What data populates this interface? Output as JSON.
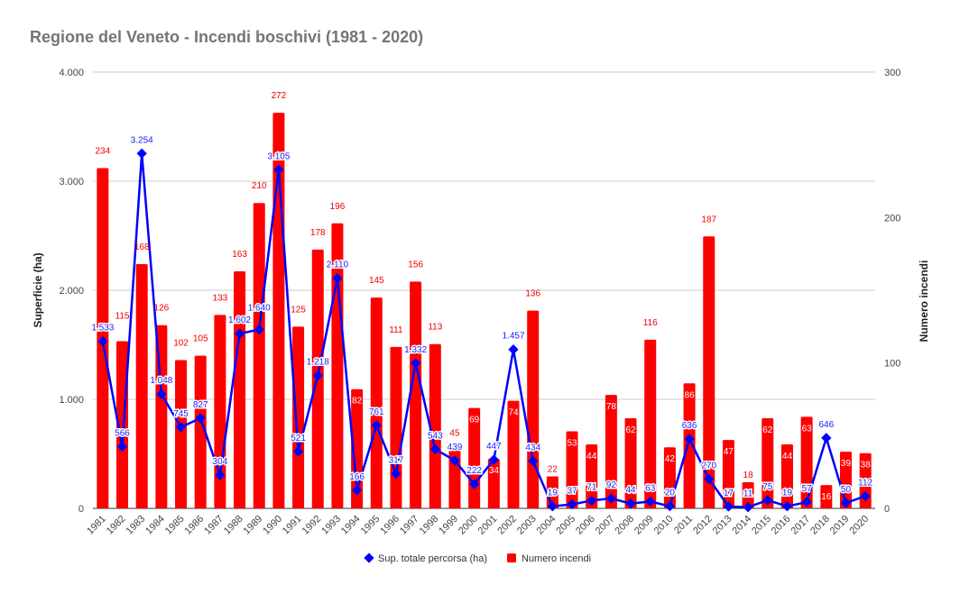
{
  "chart_data": {
    "type": "bar+line",
    "title": "Regione del Veneto - Incendi boschivi (1981 - 2020)",
    "categories": [
      "1981",
      "1982",
      "1983",
      "1984",
      "1985",
      "1986",
      "1987",
      "1988",
      "1989",
      "1990",
      "1991",
      "1992",
      "1993",
      "1994",
      "1995",
      "1996",
      "1997",
      "1998",
      "1999",
      "2000",
      "2001",
      "2002",
      "2003",
      "2004",
      "2005",
      "2006",
      "2007",
      "2008",
      "2009",
      "2010",
      "2011",
      "2012",
      "2013",
      "2014",
      "2015",
      "2016",
      "2017",
      "2018",
      "2019",
      "2020"
    ],
    "series": [
      {
        "name": "Sup. totale percorsa (ha)",
        "type": "line",
        "axis": "left",
        "color": "#0000ff",
        "values": [
          1533,
          566,
          3254,
          1048,
          745,
          827,
          304,
          1602,
          1640,
          3105,
          521,
          1218,
          2110,
          166,
          761,
          317,
          1332,
          543,
          439,
          222,
          447,
          1457,
          434,
          19,
          37,
          71,
          92,
          44,
          63,
          20,
          636,
          270,
          17,
          11,
          75,
          19,
          57,
          646,
          50,
          112
        ]
      },
      {
        "name": "Numero incendi",
        "type": "bar",
        "axis": "right",
        "color": "#ff0000",
        "values": [
          234,
          115,
          168,
          126,
          102,
          105,
          133,
          163,
          210,
          272,
          125,
          178,
          196,
          82,
          145,
          111,
          156,
          113,
          45,
          69,
          34,
          74,
          136,
          22,
          53,
          44,
          78,
          62,
          116,
          42,
          86,
          187,
          47,
          18,
          62,
          44,
          63,
          16,
          39,
          38
        ]
      }
    ],
    "ylabel": "Superficie (ha)",
    "y2label": "Numero incendi",
    "ylim": [
      0,
      4000
    ],
    "y2lim": [
      0,
      300
    ],
    "yticks": [
      "0",
      "1.000",
      "2.000",
      "3.000",
      "4.000"
    ],
    "y2ticks": [
      "0",
      "100",
      "200",
      "300"
    ],
    "grid": true,
    "legend": "bottom"
  }
}
